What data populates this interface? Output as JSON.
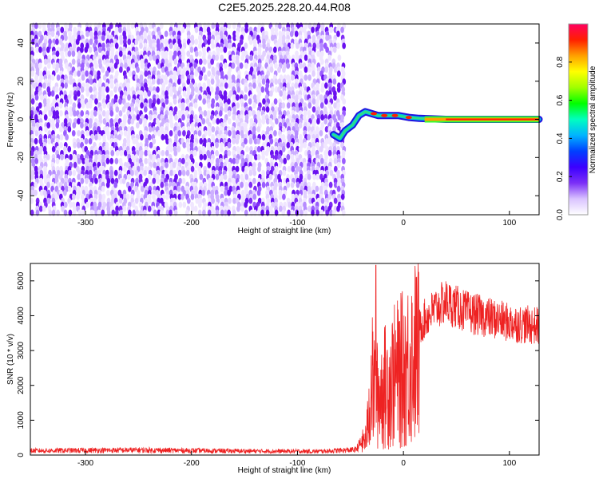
{
  "title": "C2E5.2025.228.20.44.R08",
  "chart_data": [
    {
      "type": "heatmap",
      "xlabel": "Height of straight line (km)",
      "ylabel": "Frequency (Hz)",
      "xlim": [
        -352,
        128
      ],
      "ylim": [
        -50,
        50
      ],
      "x_ticks": [
        -300,
        -200,
        -100,
        0,
        100
      ],
      "y_ticks": [
        -40,
        -20,
        0,
        20,
        40
      ],
      "colorbar": {
        "label": "Normalized spectral amplitude",
        "range": [
          0,
          1
        ],
        "ticks": [
          0.0,
          0.2,
          0.4,
          0.6,
          0.8
        ],
        "colors": [
          "#ffffff",
          "#d9c3ff",
          "#7b2ff7",
          "#3b00ff",
          "#0040ff",
          "#00b4ff",
          "#00ffc0",
          "#00ff00",
          "#a0ff00",
          "#ffff00",
          "#ffa000",
          "#ff2000",
          "#ff0060"
        ]
      },
      "noise_region_x": [
        -352,
        -55
      ],
      "signal_track": [
        {
          "x": -66,
          "freq": -8
        },
        {
          "x": -60,
          "freq": -10
        },
        {
          "x": -55,
          "freq": -6
        },
        {
          "x": -48,
          "freq": -3
        },
        {
          "x": -42,
          "freq": 2
        },
        {
          "x": -36,
          "freq": 4
        },
        {
          "x": -30,
          "freq": 3
        },
        {
          "x": -24,
          "freq": 2
        },
        {
          "x": -15,
          "freq": 2
        },
        {
          "x": -5,
          "freq": 2
        },
        {
          "x": 5,
          "freq": 1
        },
        {
          "x": 15,
          "freq": 0.5
        },
        {
          "x": 40,
          "freq": 0
        },
        {
          "x": 80,
          "freq": 0
        },
        {
          "x": 128,
          "freq": 0
        }
      ]
    },
    {
      "type": "line",
      "xlabel": "Height of straight line (km)",
      "ylabel": "SNR (10 * v/v)",
      "xlim": [
        -352,
        128
      ],
      "ylim": [
        0,
        5500
      ],
      "x_ticks": [
        -300,
        -200,
        -100,
        0,
        100
      ],
      "y_ticks": [
        0,
        1000,
        2000,
        3000,
        4000,
        5000
      ],
      "line_color": "#ee2222",
      "envelope": [
        {
          "x": -352,
          "y": 130
        },
        {
          "x": -250,
          "y": 150
        },
        {
          "x": -150,
          "y": 120
        },
        {
          "x": -80,
          "y": 110
        },
        {
          "x": -45,
          "y": 160
        },
        {
          "x": -35,
          "y": 600
        },
        {
          "x": -30,
          "y": 2500
        },
        {
          "x": -25,
          "y": 2000
        },
        {
          "x": -20,
          "y": 2200
        },
        {
          "x": -15,
          "y": 2400
        },
        {
          "x": -10,
          "y": 2600
        },
        {
          "x": 0,
          "y": 2900
        },
        {
          "x": 10,
          "y": 3400
        },
        {
          "x": 20,
          "y": 3900
        },
        {
          "x": 30,
          "y": 4200
        },
        {
          "x": 40,
          "y": 4400
        },
        {
          "x": 60,
          "y": 4100
        },
        {
          "x": 80,
          "y": 3950
        },
        {
          "x": 100,
          "y": 3800
        },
        {
          "x": 128,
          "y": 3700
        }
      ],
      "peak": {
        "x": -26,
        "y": 5450
      }
    }
  ]
}
